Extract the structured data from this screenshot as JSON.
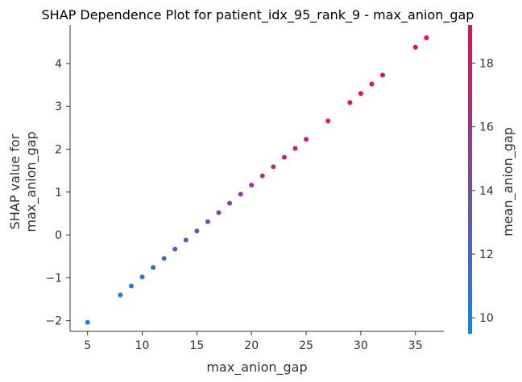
{
  "chart_data": {
    "type": "scatter",
    "title": "SHAP Dependence Plot for patient_idx_95_rank_9 - max_anion_gap",
    "xlabel": "max_anion_gap",
    "ylabel_lines": [
      "SHAP value for",
      "max_anion_gap"
    ],
    "xlim": [
      3.4,
      37.6
    ],
    "ylim": [
      -2.25,
      4.9
    ],
    "xticks": [
      5,
      10,
      15,
      20,
      25,
      30,
      35
    ],
    "yticks": [
      -2,
      -1,
      0,
      1,
      2,
      3,
      4
    ],
    "xtick_labels": [
      "5",
      "10",
      "15",
      "20",
      "25",
      "30",
      "35"
    ],
    "ytick_labels": [
      "−2",
      "−1",
      "0",
      "1",
      "2",
      "3",
      "4"
    ],
    "grid": false,
    "colorbar": {
      "label": "mean_anion_gap",
      "range": [
        9.5,
        19.2
      ],
      "ticks": [
        10,
        12,
        14,
        16,
        18
      ],
      "tick_labels": [
        "10",
        "12",
        "14",
        "16",
        "18"
      ],
      "color_low": "#008afb",
      "color_high": "#ff0052"
    },
    "points": [
      {
        "x": 5,
        "y": -2.04,
        "c": 10.0
      },
      {
        "x": 8,
        "y": -1.4,
        "c": 10.6
      },
      {
        "x": 9,
        "y": -1.19,
        "c": 10.9
      },
      {
        "x": 10,
        "y": -0.98,
        "c": 11.2
      },
      {
        "x": 11,
        "y": -0.76,
        "c": 11.6
      },
      {
        "x": 12,
        "y": -0.55,
        "c": 12.0
      },
      {
        "x": 13,
        "y": -0.33,
        "c": 12.4
      },
      {
        "x": 14,
        "y": -0.12,
        "c": 12.8
      },
      {
        "x": 15,
        "y": 0.09,
        "c": 13.2
      },
      {
        "x": 16,
        "y": 0.31,
        "c": 13.6
      },
      {
        "x": 17,
        "y": 0.52,
        "c": 14.0
      },
      {
        "x": 18,
        "y": 0.74,
        "c": 14.4
      },
      {
        "x": 19,
        "y": 0.95,
        "c": 14.8
      },
      {
        "x": 20,
        "y": 1.16,
        "c": 15.2
      },
      {
        "x": 21,
        "y": 1.38,
        "c": 15.6
      },
      {
        "x": 22,
        "y": 1.59,
        "c": 16.0
      },
      {
        "x": 23,
        "y": 1.81,
        "c": 16.4
      },
      {
        "x": 24,
        "y": 2.02,
        "c": 16.8
      },
      {
        "x": 25,
        "y": 2.23,
        "c": 17.1
      },
      {
        "x": 27,
        "y": 2.66,
        "c": 17.6
      },
      {
        "x": 29,
        "y": 3.09,
        "c": 18.0
      },
      {
        "x": 30,
        "y": 3.3,
        "c": 18.2
      },
      {
        "x": 31,
        "y": 3.52,
        "c": 18.4
      },
      {
        "x": 32,
        "y": 3.73,
        "c": 18.6
      },
      {
        "x": 35,
        "y": 4.38,
        "c": 19.0
      },
      {
        "x": 36,
        "y": 4.6,
        "c": 19.1
      }
    ]
  }
}
